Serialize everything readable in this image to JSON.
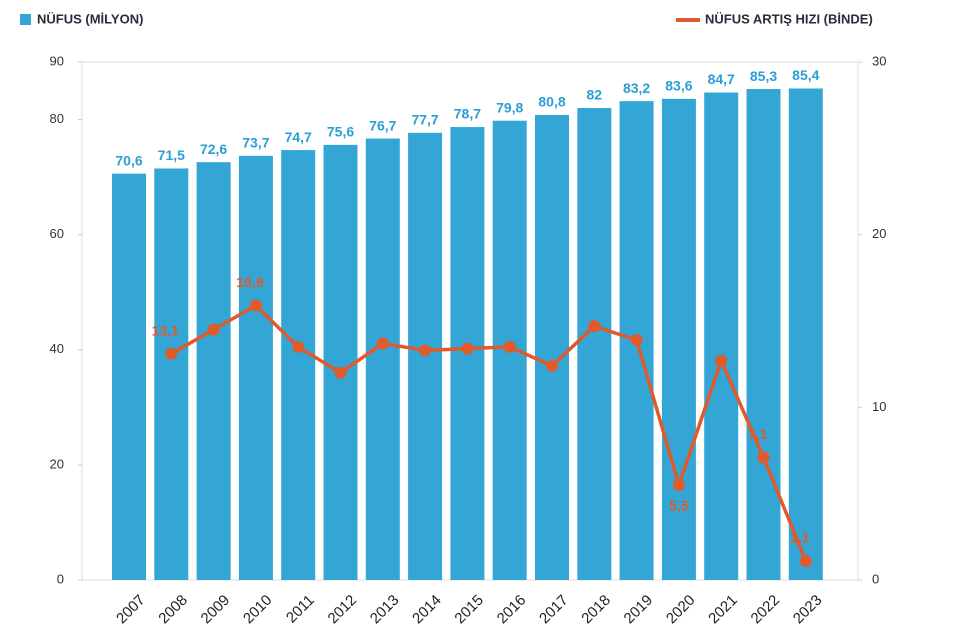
{
  "chart_data": {
    "type": "bar_line",
    "categories": [
      "2007",
      "2008",
      "2009",
      "2010",
      "2011",
      "2012",
      "2013",
      "2014",
      "2015",
      "2016",
      "2017",
      "2018",
      "2019",
      "2020",
      "2021",
      "2022",
      "2023"
    ],
    "series": [
      {
        "name": "NÜFUS (MİLYON)",
        "type": "bar",
        "color": "#33a6d6",
        "values": [
          70.6,
          71.5,
          72.6,
          73.7,
          74.7,
          75.6,
          76.7,
          77.7,
          78.7,
          79.8,
          80.8,
          82,
          83.2,
          83.6,
          84.7,
          85.3,
          85.4
        ],
        "value_labels": [
          "70,6",
          "71,5",
          "72,6",
          "73,7",
          "74,7",
          "75,6",
          "76,7",
          "77,7",
          "78,7",
          "79,8",
          "80,8",
          "82",
          "83,2",
          "83,6",
          "84,7",
          "85,3",
          "85,4"
        ]
      },
      {
        "name": "NÜFUS ARTIŞ HIZI (BİNDE)",
        "type": "line",
        "axis": "y2",
        "color": "#e05a2b",
        "values": [
          null,
          13.1,
          14.5,
          15.9,
          13.5,
          12.0,
          13.7,
          13.3,
          13.4,
          13.5,
          12.4,
          14.7,
          13.9,
          5.5,
          12.7,
          7.1,
          1.1
        ],
        "value_labels": [
          null,
          "13,1",
          null,
          "15,9",
          null,
          null,
          null,
          null,
          null,
          null,
          null,
          null,
          null,
          "5,5",
          null,
          "7,1",
          "1,1"
        ]
      }
    ],
    "ylim": [
      0,
      90
    ],
    "yticks": [
      0,
      20,
      40,
      60,
      80,
      90
    ],
    "y2lim": [
      0,
      30
    ],
    "y2ticks": [
      0,
      10,
      20,
      30
    ],
    "grid": false
  }
}
